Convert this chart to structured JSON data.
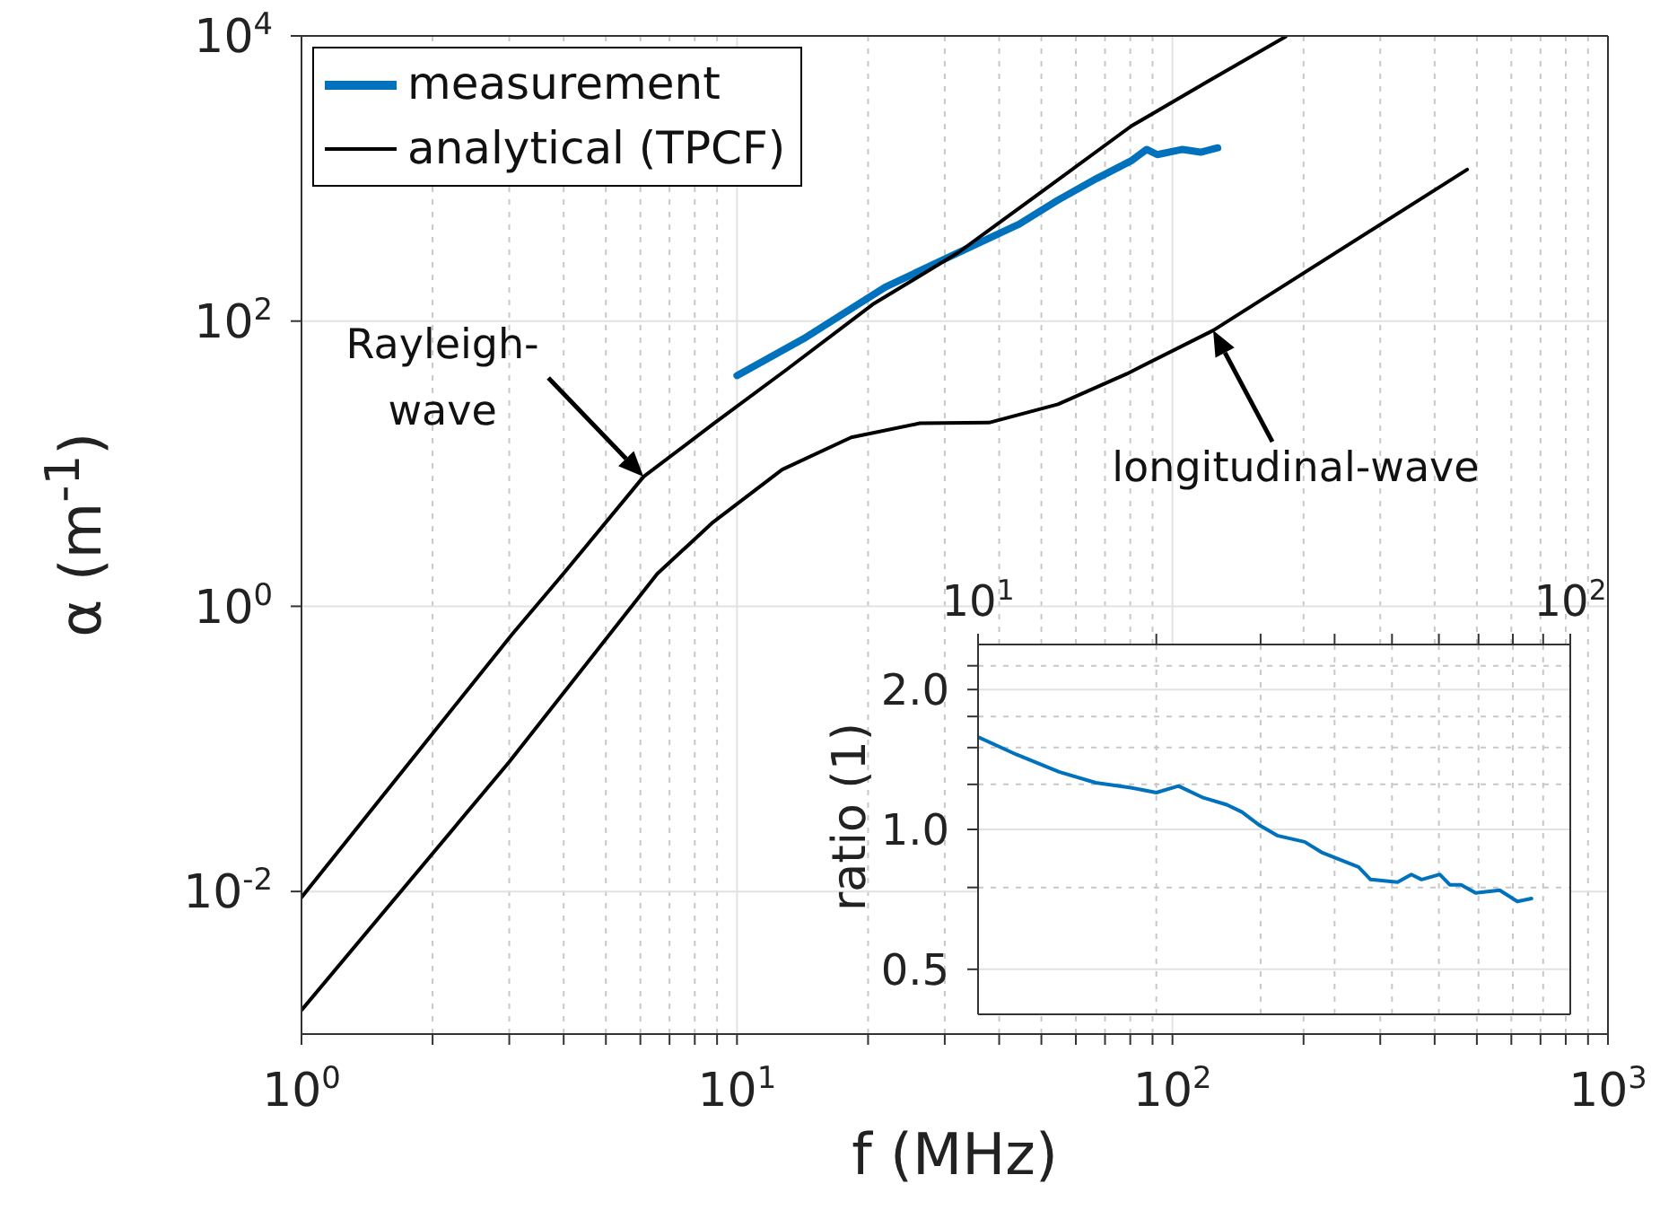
{
  "chart_data": [
    {
      "type": "line",
      "xlabel": "f (MHz)",
      "ylabel": "α (m$^{-1}$)",
      "log": "xy",
      "xlim": [
        1,
        1000
      ],
      "ylim": [
        0.001,
        10000
      ],
      "xticks": [
        {
          "value": 1,
          "label": "10$^{0}$"
        },
        {
          "value": 2,
          "label": null
        },
        {
          "value": 3,
          "label": null
        },
        {
          "value": 4,
          "label": null
        },
        {
          "value": 5,
          "label": null
        },
        {
          "value": 6,
          "label": null
        },
        {
          "value": 7,
          "label": null
        },
        {
          "value": 8,
          "label": null
        },
        {
          "value": 9,
          "label": null
        },
        {
          "value": 10,
          "label": "10$^{1}$"
        },
        {
          "value": 20,
          "label": null
        },
        {
          "value": 30,
          "label": null
        },
        {
          "value": 40,
          "label": null
        },
        {
          "value": 50,
          "label": null
        },
        {
          "value": 60,
          "label": null
        },
        {
          "value": 70,
          "label": null
        },
        {
          "value": 80,
          "label": null
        },
        {
          "value": 90,
          "label": null
        },
        {
          "value": 100,
          "label": "10$^{2}$"
        },
        {
          "value": 200,
          "label": null
        },
        {
          "value": 300,
          "label": null
        },
        {
          "value": 400,
          "label": null
        },
        {
          "value": 500,
          "label": null
        },
        {
          "value": 600,
          "label": null
        },
        {
          "value": 700,
          "label": null
        },
        {
          "value": 800,
          "label": null
        },
        {
          "value": 900,
          "label": null
        },
        {
          "value": 1000,
          "label": "10$^{3}$"
        }
      ],
      "yticks": [
        {
          "value": 0.01,
          "label": "10$^{-2}$"
        },
        {
          "value": 1,
          "label": "10$^{0}$"
        },
        {
          "value": 100,
          "label": "10$^{2}$"
        },
        {
          "value": 10000,
          "label": "10$^{4}$"
        }
      ],
      "grid": true,
      "legend": "top left",
      "annotations": [
        {
          "text": "Rayleigh-\nwave",
          "x": 6.1,
          "y": 8.1
        },
        {
          "text": "longitudinal-wave",
          "x": 124,
          "y": 86
        }
      ],
      "series": [
        {
          "name": "measurement",
          "color": "#0072bd",
          "x": [
            10,
            14.2,
            21.9,
            30.9,
            44.4,
            54.6,
            67,
            80.4,
            87.2,
            92.3,
            105.5,
            116,
            127
          ],
          "values": [
            41.5,
            75,
            173,
            284,
            478,
            706,
            1000,
            1330,
            1600,
            1470,
            1600,
            1530,
            1640
          ]
        },
        {
          "name": "analytical (TPCF)",
          "color": "#000000",
          "x": [
            1,
            2,
            3.05,
            4,
            6.1,
            8.8,
            13,
            20.5,
            32.3,
            50,
            80.4,
            120,
            182
          ],
          "values": [
            0.0091,
            0.128,
            0.64,
            1.7,
            8.1,
            18.9,
            45.7,
            131,
            304,
            805,
            2330,
            4760,
            9890
          ]
        },
        {
          "color": "#000000",
          "x": [
            1,
            3,
            6.56,
            8.82,
            12.7,
            18.3,
            26.3,
            37.9,
            54.6,
            78.6,
            124,
            475
          ],
          "values": [
            0.00147,
            0.081,
            1.69,
            3.9,
            9.1,
            15.3,
            19.2,
            19.4,
            26.1,
            42.7,
            86,
            1156
          ]
        }
      ]
    },
    {
      "type": "line",
      "ylabel": "ratio (1)",
      "log": "xy",
      "xlim": [
        10,
        100
      ],
      "ylim": [
        0.4,
        2.5
      ],
      "xticks": [
        {
          "value": 10,
          "label": "10$^{1}$"
        },
        {
          "value": 20,
          "label": null
        },
        {
          "value": 30,
          "label": null
        },
        {
          "value": 40,
          "label": null
        },
        {
          "value": 50,
          "label": null
        },
        {
          "value": 60,
          "label": null
        },
        {
          "value": 70,
          "label": null
        },
        {
          "value": 80,
          "label": null
        },
        {
          "value": 90,
          "label": null
        },
        {
          "value": 100,
          "label": "10$^{2}$"
        }
      ],
      "yticks": [
        {
          "value": 0.5,
          "label": "0.5"
        },
        {
          "value": 0.75,
          "label": null
        },
        {
          "value": 1,
          "label": "1.0"
        },
        {
          "value": 1.25,
          "label": null
        },
        {
          "value": 1.5,
          "label": null
        },
        {
          "value": 1.75,
          "label": null
        },
        {
          "value": 2,
          "label": "2.0"
        },
        {
          "value": 2.25,
          "label": null
        }
      ],
      "grid": true,
      "series": [
        {
          "color": "#0072bd",
          "x": [
            10,
            11.6,
            13.7,
            15.8,
            18.1,
            20,
            21.8,
            24,
            26.3,
            27.9,
            29.9,
            32,
            35.6,
            38.2,
            43.9,
            46,
            51.1,
            53.9,
            56.1,
            60.2,
            62.6,
            65.4,
            69.2,
            76,
            81.4,
            86
          ],
          "values": [
            1.58,
            1.45,
            1.33,
            1.26,
            1.23,
            1.2,
            1.24,
            1.17,
            1.13,
            1.09,
            1.02,
            0.97,
            0.94,
            0.89,
            0.83,
            0.78,
            0.77,
            0.8,
            0.78,
            0.8,
            0.76,
            0.76,
            0.73,
            0.74,
            0.7,
            0.71
          ]
        }
      ]
    }
  ]
}
